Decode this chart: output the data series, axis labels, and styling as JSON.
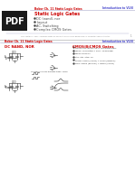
{
  "bg_color": "#ffffff",
  "diagram_color": "#333333",
  "divider_color": "#aaaacc",
  "footer_color": "#888888",
  "footer_text": "Copyright Bokor 2003, Advanced Textbook, University of California, Berkeley EECS, Computer Aided Instruction",
  "slide1": {
    "header_left": "Bokor Ch. 11 Static Logic Gates",
    "header_right": "Introduction to VLSI",
    "header_color": "#cc0000",
    "header_right_color": "#4444cc",
    "title1": "Static Logic Gates",
    "title1_color": "#cc0000",
    "bullets": [
      "DC (nand), nor",
      "Layout",
      "AC, Switching",
      "Complex CMOS Gates"
    ],
    "bullet_color": "#444444",
    "pdf_label": "PDF",
    "pdf_bg": "#1a1a1a",
    "pdf_text": "#ffffff"
  },
  "slide2": {
    "header_left": "Bokor Ch. 11 Static Logic Gates",
    "header_right": "Introduction to VLSI",
    "header_color": "#cc0000",
    "header_right_color": "#4444cc",
    "section_left": "DC NAND, NOR",
    "section_right": "CMOS/BiCMOS Gates",
    "section_color": "#cc0000"
  }
}
